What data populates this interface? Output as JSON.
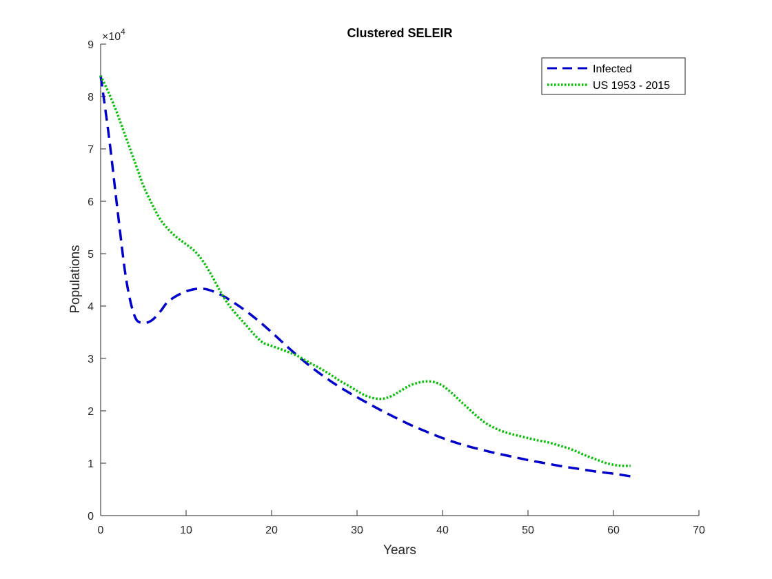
{
  "chart_data": {
    "type": "line",
    "title": "Clustered SELEIR",
    "xlabel": "Years",
    "ylabel": "Populations",
    "xlim": [
      0,
      70
    ],
    "ylim": [
      0,
      90000
    ],
    "x_ticks": [
      0,
      10,
      20,
      30,
      40,
      50,
      60,
      70
    ],
    "y_ticks": [
      0,
      1,
      2,
      3,
      4,
      5,
      6,
      7,
      8,
      9
    ],
    "y_exponent_label": "×10",
    "y_exponent_power": "4",
    "grid": false,
    "legend_position": "top-right",
    "series": [
      {
        "name": "Infected",
        "style": "dashed",
        "color": "#0000cc",
        "x": [
          0,
          1,
          2,
          3,
          4,
          5,
          6,
          7,
          8,
          10,
          12,
          14,
          16,
          18,
          20,
          22,
          24,
          26,
          28,
          30,
          32,
          34,
          36,
          38,
          40,
          42,
          44,
          46,
          48,
          50,
          52,
          54,
          56,
          58,
          60,
          62
        ],
        "y": [
          84000,
          72000,
          58000,
          45000,
          38000,
          36800,
          37300,
          39000,
          41000,
          42800,
          43300,
          42200,
          40200,
          37800,
          35000,
          32000,
          29200,
          26700,
          24500,
          22600,
          20800,
          19100,
          17500,
          16100,
          14800,
          13700,
          12800,
          12000,
          11300,
          10600,
          10000,
          9400,
          8900,
          8400,
          8000,
          7500
        ]
      },
      {
        "name": "US 1953 - 2015",
        "style": "dotted",
        "color": "#00c000",
        "x": [
          0,
          1,
          2,
          3,
          4,
          5,
          6,
          7,
          8,
          9,
          10,
          11,
          12,
          13,
          14,
          15,
          16,
          17,
          18,
          19,
          20,
          21,
          22,
          23,
          24,
          25,
          26,
          27,
          28,
          29,
          30,
          31,
          32,
          33,
          34,
          35,
          36,
          37,
          38,
          39,
          40,
          41,
          42,
          43,
          44,
          45,
          46,
          47,
          48,
          49,
          50,
          51,
          52,
          53,
          54,
          55,
          56,
          57,
          58,
          59,
          60,
          61,
          62
        ],
        "y": [
          84000,
          80500,
          76500,
          72000,
          67500,
          63000,
          59500,
          56500,
          54500,
          53000,
          51800,
          50500,
          48500,
          45800,
          42800,
          40200,
          38200,
          36400,
          34500,
          33000,
          32400,
          31800,
          31200,
          30500,
          29600,
          28700,
          27800,
          26800,
          25700,
          24800,
          23800,
          22900,
          22400,
          22300,
          22800,
          23700,
          24700,
          25300,
          25600,
          25500,
          24800,
          23500,
          22000,
          20500,
          19000,
          17700,
          16800,
          16100,
          15600,
          15200,
          14800,
          14400,
          14100,
          13700,
          13200,
          12700,
          12000,
          11300,
          10700,
          10100,
          9700,
          9500,
          9500
        ]
      }
    ]
  }
}
